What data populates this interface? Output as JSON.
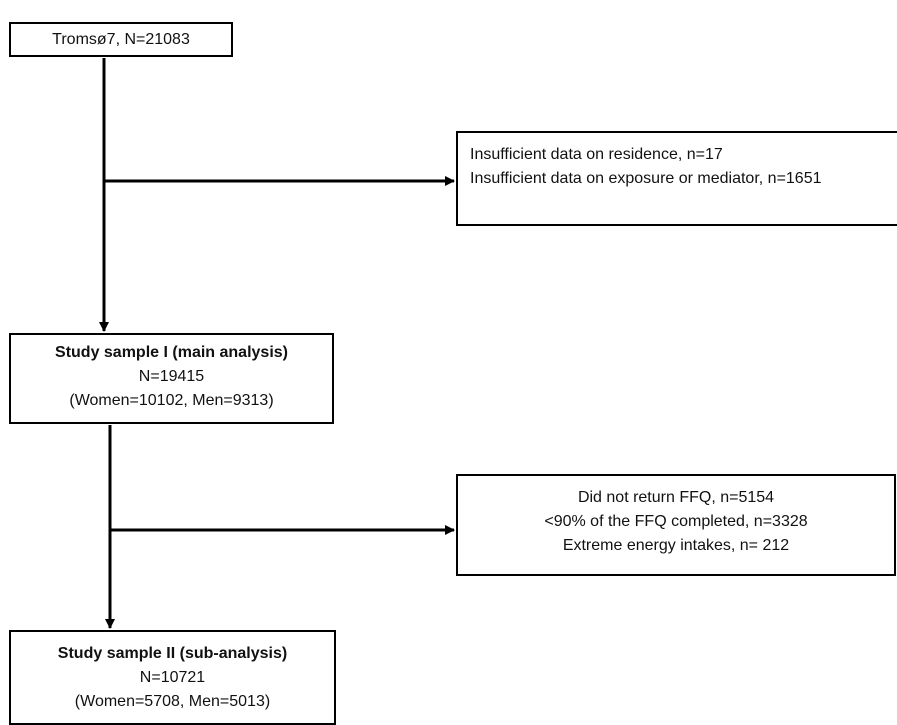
{
  "start": {
    "label": "Tromsø7, N=21083"
  },
  "exclusion_1": {
    "lines": [
      "Insufficient data on residence, n=17",
      "Insufficient data on exposure or mediator, n=1651"
    ]
  },
  "study_sample_1": {
    "title": "Study sample I (main analysis)",
    "n": "N=19415",
    "breakdown": "(Women=10102, Men=9313)"
  },
  "exclusion_2": {
    "lines": [
      "Did not return FFQ, n=5154",
      "<90% of the FFQ completed, n=3328",
      "Extreme energy intakes, n= 212"
    ]
  },
  "study_sample_2": {
    "title": "Study sample II (sub-analysis)",
    "n": "N=10721",
    "breakdown": "(Women=5708, Men=5013)"
  }
}
